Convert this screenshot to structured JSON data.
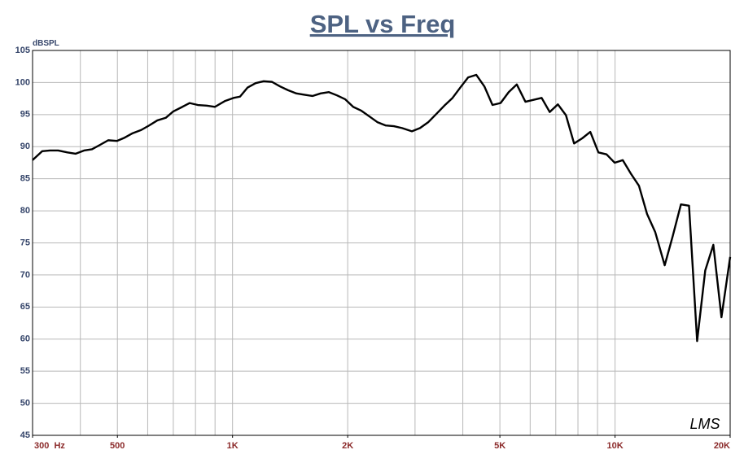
{
  "chart_data": {
    "type": "line",
    "title": "SPL vs Freq",
    "y_label": "dBSPL",
    "logo": "LMS",
    "x_scale": "log",
    "grid": true,
    "xlim": [
      300,
      20000
    ],
    "ylim": [
      45,
      105
    ],
    "yticks": [
      45,
      50,
      55,
      60,
      65,
      70,
      75,
      80,
      85,
      90,
      95,
      100,
      105
    ],
    "xticks": [
      {
        "value": 300,
        "label": "300  Hz"
      },
      500,
      {
        "value": 1000,
        "label": "1K"
      },
      {
        "value": 2000,
        "label": "2K"
      },
      {
        "value": 5000,
        "label": "5K"
      },
      {
        "value": 10000,
        "label": "10K"
      },
      {
        "value": 20000,
        "label": "20K"
      }
    ],
    "xgrid": [
      400,
      500,
      600,
      700,
      800,
      900,
      1000,
      2000,
      3000,
      4000,
      5000,
      6000,
      7000,
      8000,
      9000,
      10000
    ],
    "x": [
      300,
      318,
      333,
      350,
      370,
      389,
      409,
      429,
      451,
      473,
      499,
      522,
      548,
      577,
      605,
      636,
      669,
      700,
      739,
      772,
      811,
      855,
      899,
      954,
      1006,
      1046,
      1094,
      1149,
      1206,
      1268,
      1331,
      1397,
      1469,
      1541,
      1618,
      1699,
      1786,
      1875,
      1969,
      2068,
      2172,
      2281,
      2395,
      2515,
      2641,
      2774,
      2944,
      3091,
      3246,
      3410,
      3580,
      3760,
      3949,
      4130,
      4337,
      4554,
      4782,
      5021,
      5272,
      5536,
      5831,
      6122,
      6429,
      6750,
      7088,
      7443,
      7815,
      8207,
      8617,
      9048,
      9501,
      9977,
      10476,
      11000,
      11550,
      12128,
      12735,
      13485,
      14160,
      14870,
      15613,
      16393,
      17213,
      18074,
      18978,
      20000
    ],
    "series": [
      {
        "color": "#000000",
        "values": [
          87.9,
          89.3,
          89.4,
          89.4,
          89.1,
          88.9,
          89.4,
          89.6,
          90.3,
          91.0,
          90.9,
          91.4,
          92.1,
          92.6,
          93.3,
          94.1,
          94.5,
          95.5,
          96.2,
          96.8,
          96.5,
          96.4,
          96.2,
          97.1,
          97.6,
          97.8,
          99.2,
          99.9,
          100.2,
          100.1,
          99.4,
          98.8,
          98.3,
          98.1,
          97.9,
          98.3,
          98.5,
          98.0,
          97.4,
          96.2,
          95.6,
          94.7,
          93.8,
          93.3,
          93.2,
          92.9,
          92.4,
          92.9,
          93.8,
          95.1,
          96.4,
          97.6,
          99.3,
          100.8,
          101.2,
          99.4,
          96.5,
          96.8,
          98.5,
          99.7,
          97.0,
          97.3,
          97.6,
          95.4,
          96.6,
          94.9,
          90.5,
          91.3,
          92.3,
          89.1,
          88.8,
          87.5,
          87.9,
          85.8,
          83.9,
          79.5,
          76.7,
          71.5,
          76.1,
          81.0,
          80.8,
          59.7,
          70.7,
          74.7,
          63.4,
          72.8
        ]
      }
    ]
  }
}
